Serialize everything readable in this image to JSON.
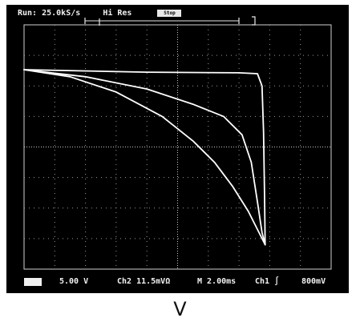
{
  "status_bar": {
    "run_rate": "Run: 25.0kS/s",
    "acq_mode": "Hi Res",
    "mode_indicator": "Stop"
  },
  "bottom_bar": {
    "ch1_scale": "5.00 V",
    "ch2_scale": "Ch2  11.5mVΩ",
    "timebase": "M 2.00ms",
    "trigger": "Ch1 ∫",
    "trigger_level": "800mV"
  },
  "caption": "V",
  "colors": {
    "screen": "#000000",
    "trace": "#ffffff",
    "grid": "#9a9a9a"
  },
  "chart_data": {
    "type": "line",
    "grid": true,
    "x_divisions": 10,
    "y_divisions": 8,
    "series": [
      {
        "values": [
          [
            0.0,
            6.53
          ],
          [
            4.0,
            6.45
          ],
          [
            7.0,
            6.43
          ],
          [
            7.6,
            6.4
          ],
          [
            7.75,
            6.0
          ],
          [
            7.8,
            4.5
          ],
          [
            7.83,
            2.5
          ],
          [
            7.85,
            0.8
          ]
        ]
      },
      {
        "values": [
          [
            0.0,
            6.53
          ],
          [
            2.0,
            6.3
          ],
          [
            4.0,
            5.9
          ],
          [
            5.5,
            5.4
          ],
          [
            6.5,
            5.0
          ],
          [
            7.1,
            4.4
          ],
          [
            7.4,
            3.5
          ],
          [
            7.6,
            2.2
          ],
          [
            7.75,
            1.2
          ],
          [
            7.85,
            0.8
          ]
        ]
      },
      {
        "values": [
          [
            0.0,
            6.53
          ],
          [
            1.5,
            6.3
          ],
          [
            3.0,
            5.8
          ],
          [
            4.5,
            5.0
          ],
          [
            5.5,
            4.2
          ],
          [
            6.2,
            3.5
          ],
          [
            6.8,
            2.7
          ],
          [
            7.3,
            1.9
          ],
          [
            7.85,
            0.8
          ]
        ]
      }
    ]
  }
}
